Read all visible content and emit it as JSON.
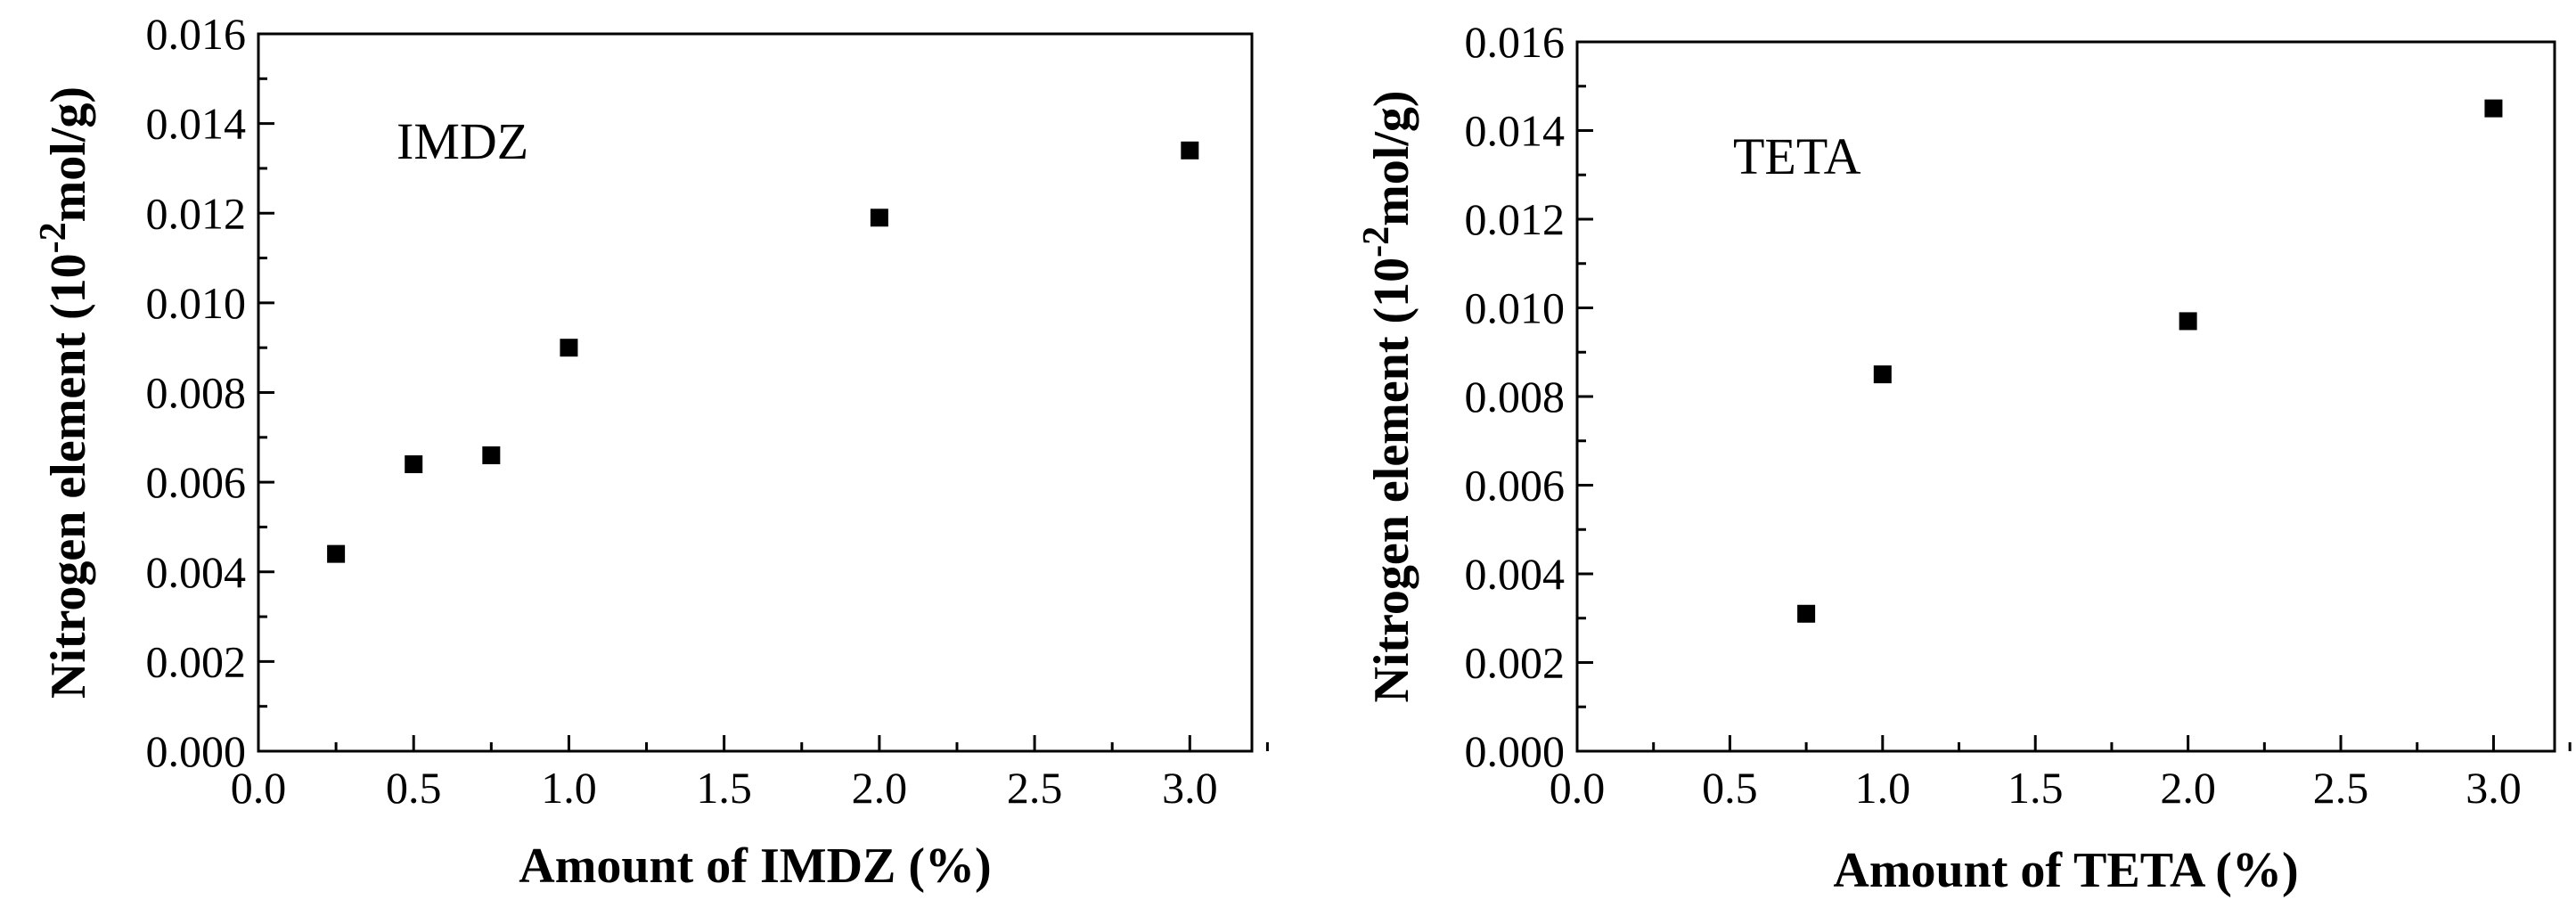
{
  "chart_data": [
    {
      "type": "scatter",
      "annotation": "IMDZ",
      "xlabel": "Amount of IMDZ (%)",
      "ylabel_main": "Nitrogen element (10",
      "ylabel_sup": "-2",
      "ylabel_unit": "mol/g)",
      "xlim": [
        0.0,
        3.2
      ],
      "ylim": [
        0.0,
        0.016
      ],
      "xticks": [
        "0.0",
        "0.5",
        "1.0",
        "1.5",
        "2.0",
        "2.5",
        "3.0"
      ],
      "yticks": [
        "0.000",
        "0.002",
        "0.004",
        "0.006",
        "0.008",
        "0.010",
        "0.012",
        "0.014",
        "0.016"
      ],
      "marker": "square",
      "marker_color": "#000000",
      "points": [
        {
          "x": 0.25,
          "y": 0.0044
        },
        {
          "x": 0.5,
          "y": 0.0064
        },
        {
          "x": 0.75,
          "y": 0.0066
        },
        {
          "x": 1.0,
          "y": 0.009
        },
        {
          "x": 2.0,
          "y": 0.0119
        },
        {
          "x": 3.0,
          "y": 0.0134
        }
      ]
    },
    {
      "type": "scatter",
      "annotation": "TETA",
      "xlabel": "Amount of TETA (%)",
      "ylabel_main": "Nitrogen element (10",
      "ylabel_sup": "-2",
      "ylabel_unit": "mol/g)",
      "xlim": [
        0.0,
        3.2
      ],
      "ylim": [
        0.0,
        0.016
      ],
      "xticks": [
        "0.0",
        "0.5",
        "1.0",
        "1.5",
        "2.0",
        "2.5",
        "3.0"
      ],
      "yticks": [
        "0.000",
        "0.002",
        "0.004",
        "0.006",
        "0.008",
        "0.010",
        "0.012",
        "0.014",
        "0.016"
      ],
      "marker": "square",
      "marker_color": "#000000",
      "points": [
        {
          "x": 0.75,
          "y": 0.0031
        },
        {
          "x": 1.0,
          "y": 0.0085
        },
        {
          "x": 2.0,
          "y": 0.0097
        },
        {
          "x": 3.0,
          "y": 0.0145
        }
      ]
    }
  ]
}
